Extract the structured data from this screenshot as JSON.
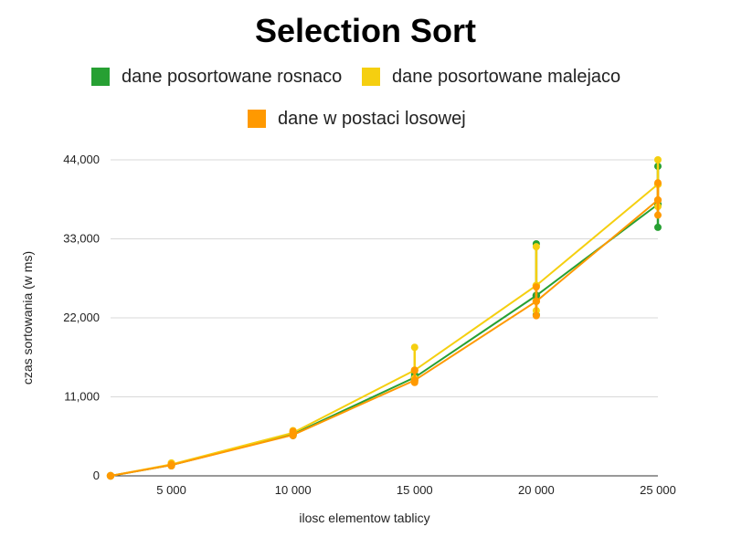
{
  "chart_data": {
    "type": "line",
    "title": "Selection Sort",
    "xlabel": "ilosc elementow tablicy",
    "ylabel": "czas sortowania (w ms)",
    "xlim": [
      2500,
      25000
    ],
    "ylim": [
      0,
      44000
    ],
    "x_ticks": [
      5000,
      10000,
      15000,
      20000,
      25000
    ],
    "x_tick_labels": [
      "5 000",
      "10 000",
      "15 000",
      "20 000",
      "25 000"
    ],
    "y_ticks": [
      0,
      11000,
      22000,
      33000,
      44000
    ],
    "y_tick_labels": [
      "0",
      "11,000",
      "22,000",
      "33,000",
      "44,000"
    ],
    "grid": true,
    "legend_position": "top",
    "series": [
      {
        "name": "dane posortowane rosnaco",
        "color": "#27a033",
        "x": [
          2500,
          5000,
          10000,
          15000,
          20000,
          25000
        ],
        "y": [
          0,
          1500,
          5800,
          13700,
          25100,
          37800
        ],
        "spread": [
          [
            2500,
            0,
            0
          ],
          [
            5000,
            1400,
            1600
          ],
          [
            10000,
            5600,
            6000
          ],
          [
            15000,
            13300,
            14100
          ],
          [
            20000,
            22400,
            32300
          ],
          [
            25000,
            34600,
            43100
          ]
        ]
      },
      {
        "name": "dane posortowane malejaco",
        "color": "#f5cf10",
        "x": [
          2500,
          5000,
          10000,
          15000,
          20000,
          25000
        ],
        "y": [
          0,
          1600,
          6000,
          14700,
          26500,
          40600
        ],
        "spread": [
          [
            2500,
            0,
            0
          ],
          [
            5000,
            1400,
            1800
          ],
          [
            10000,
            5800,
            6300
          ],
          [
            15000,
            13600,
            17900
          ],
          [
            20000,
            23000,
            31900
          ],
          [
            25000,
            37500,
            44000
          ]
        ]
      },
      {
        "name": "dane w postaci losowej",
        "color": "#ff9900",
        "x": [
          2500,
          5000,
          10000,
          15000,
          20000,
          25000
        ],
        "y": [
          0,
          1500,
          5700,
          13300,
          24300,
          38400
        ],
        "spread": [
          [
            2500,
            0,
            0
          ],
          [
            5000,
            1400,
            1600
          ],
          [
            10000,
            5600,
            6200
          ],
          [
            15000,
            13000,
            14700
          ],
          [
            20000,
            22300,
            26300
          ],
          [
            25000,
            36300,
            40800
          ]
        ]
      }
    ]
  }
}
